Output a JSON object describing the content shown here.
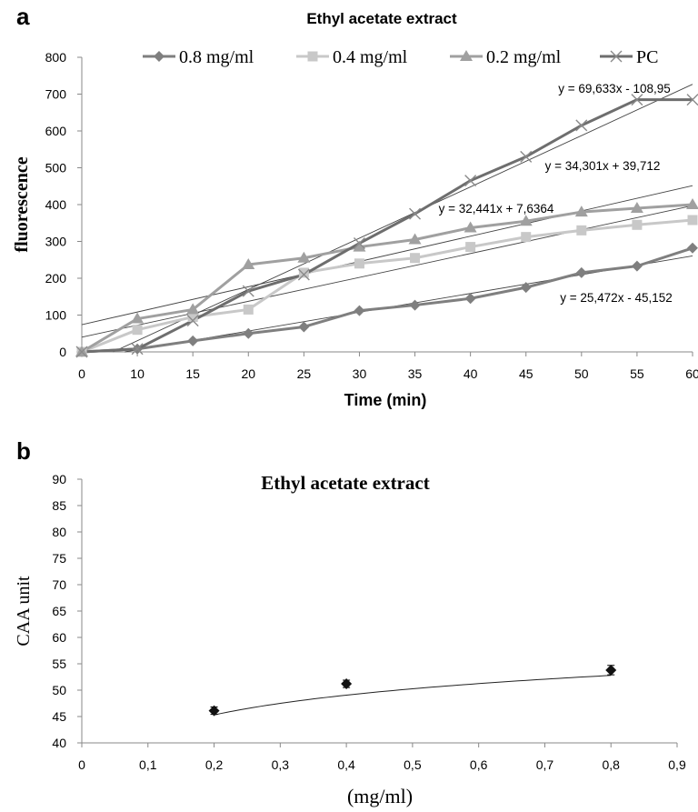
{
  "panels": [
    {
      "panel_label": "a",
      "chart_data": {
        "type": "line",
        "title": "Ethyl acetate extract",
        "xlabel": "Time (min)",
        "ylabel": "fluorescence",
        "x": [
          0,
          10,
          15,
          20,
          25,
          30,
          35,
          40,
          45,
          50,
          55,
          60
        ],
        "x_ticks": [
          "0",
          "10",
          "15",
          "20",
          "25",
          "30",
          "35",
          "40",
          "45",
          "50",
          "55",
          "60"
        ],
        "ylim": [
          0,
          800
        ],
        "y_ticks": [
          "0",
          "100",
          "200",
          "300",
          "400",
          "500",
          "600",
          "700",
          "800"
        ],
        "grid": false,
        "legend_position": "top",
        "series": [
          {
            "name": "0.8 mg/ml",
            "marker": "diamond",
            "color": "#7f7f7f",
            "values": [
              0,
              8,
              30,
              50,
              68,
              112,
              127,
              145,
              175,
              215,
              233,
              282
            ]
          },
          {
            "name": "0.4 mg/ml",
            "marker": "square",
            "color": "#c8c8c8",
            "values": [
              0,
              60,
              95,
              115,
              215,
              240,
              255,
              285,
              312,
              330,
              345,
              358
            ]
          },
          {
            "name": "0.2 mg/ml",
            "marker": "triangle",
            "color": "#a0a0a0",
            "values": [
              0,
              90,
              115,
              237,
              255,
              285,
              305,
              337,
              355,
              380,
              390,
              400
            ]
          },
          {
            "name": "PC",
            "marker": "x",
            "color": "#6e6e6e",
            "values": [
              0,
              8,
              85,
              165,
              210,
              295,
              375,
              465,
              530,
              615,
              685,
              685
            ]
          }
        ],
        "trendlines": [
          {
            "equation": "y = 69,633x - 108,95",
            "slope": 69.633,
            "intercept": -108.95
          },
          {
            "equation": "y = 34,301x + 39,712",
            "slope": 34.301,
            "intercept": 39.712
          },
          {
            "equation": "y = 32,441x + 7,6364",
            "slope": 32.441,
            "intercept": 7.6364
          },
          {
            "equation": "y = 25,472x - 45,152",
            "slope": 25.472,
            "intercept": -45.152
          }
        ]
      }
    },
    {
      "panel_label": "b",
      "chart_data": {
        "type": "scatter",
        "title": "Ethyl acetate extract",
        "xlabel": "(mg/ml)",
        "ylabel": "CAA unit",
        "xlim": [
          0,
          0.9
        ],
        "x_ticks": [
          "0",
          "0,1",
          "0,2",
          "0,3",
          "0,4",
          "0,5",
          "0,6",
          "0,7",
          "0,8",
          "0,9"
        ],
        "ylim": [
          40,
          90
        ],
        "y_ticks": [
          "40",
          "45",
          "50",
          "55",
          "60",
          "65",
          "70",
          "75",
          "80",
          "85",
          "90"
        ],
        "grid": false,
        "points": [
          {
            "x": 0.2,
            "y": 46.1,
            "error": 0.7
          },
          {
            "x": 0.4,
            "y": 51.2,
            "error": 0.7
          },
          {
            "x": 0.8,
            "y": 53.8,
            "error": 0.9
          }
        ],
        "trendline": {
          "type": "logarithmic",
          "a": 54.0,
          "b": 5.4
        }
      }
    }
  ]
}
